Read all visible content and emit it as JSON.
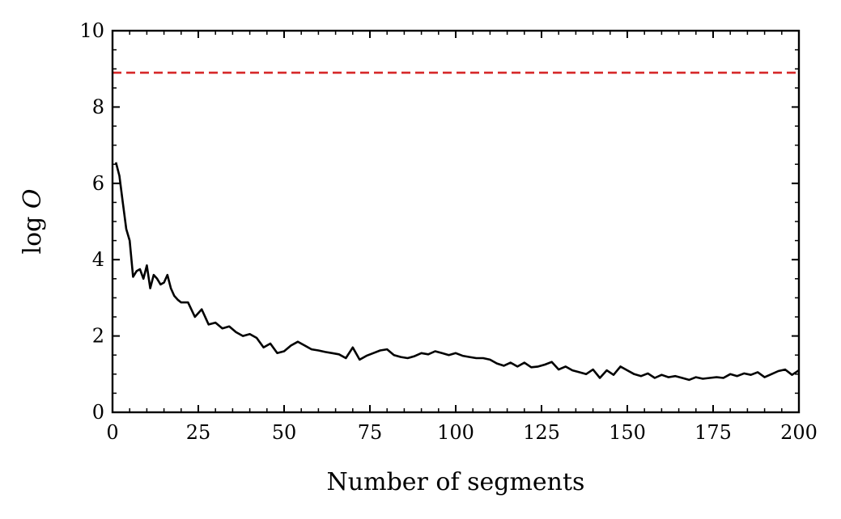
{
  "chart_data": {
    "type": "line",
    "xlabel": "Number of segments",
    "ylabel": "log O",
    "xlim": [
      0,
      200
    ],
    "ylim": [
      0,
      10
    ],
    "xticks": [
      0,
      25,
      50,
      75,
      100,
      125,
      150,
      175,
      200
    ],
    "yticks": [
      0,
      2,
      4,
      6,
      8,
      10
    ],
    "grid": false,
    "reference_line": {
      "y": 8.9,
      "style": "dashed",
      "color": "#d62728"
    },
    "series": [
      {
        "color": "#000000",
        "x": [
          1,
          2,
          3,
          4,
          5,
          6,
          7,
          8,
          9,
          10,
          11,
          12,
          13,
          14,
          15,
          16,
          17,
          18,
          19,
          20,
          22,
          24,
          26,
          28,
          30,
          32,
          34,
          36,
          38,
          40,
          42,
          44,
          46,
          48,
          50,
          52,
          54,
          56,
          58,
          60,
          62,
          64,
          66,
          68,
          70,
          72,
          74,
          76,
          78,
          80,
          82,
          84,
          86,
          88,
          90,
          92,
          94,
          96,
          98,
          100,
          102,
          104,
          106,
          108,
          110,
          112,
          114,
          116,
          118,
          120,
          122,
          124,
          126,
          128,
          130,
          132,
          134,
          136,
          138,
          140,
          142,
          144,
          146,
          148,
          150,
          152,
          154,
          156,
          158,
          160,
          162,
          164,
          166,
          168,
          170,
          172,
          174,
          176,
          178,
          180,
          182,
          184,
          186,
          188,
          190,
          192,
          194,
          196,
          198,
          200
        ],
        "y": [
          6.55,
          6.2,
          5.5,
          4.8,
          4.5,
          3.55,
          3.7,
          3.75,
          3.5,
          3.85,
          3.25,
          3.6,
          3.5,
          3.35,
          3.4,
          3.6,
          3.25,
          3.05,
          2.95,
          2.88,
          2.88,
          2.5,
          2.7,
          2.3,
          2.35,
          2.2,
          2.25,
          2.1,
          2.0,
          2.05,
          1.95,
          1.7,
          1.8,
          1.55,
          1.6,
          1.75,
          1.85,
          1.75,
          1.65,
          1.62,
          1.58,
          1.55,
          1.52,
          1.42,
          1.7,
          1.38,
          1.48,
          1.55,
          1.62,
          1.65,
          1.5,
          1.45,
          1.42,
          1.47,
          1.55,
          1.52,
          1.6,
          1.55,
          1.5,
          1.55,
          1.48,
          1.45,
          1.42,
          1.42,
          1.38,
          1.28,
          1.22,
          1.3,
          1.2,
          1.3,
          1.18,
          1.2,
          1.25,
          1.32,
          1.12,
          1.2,
          1.1,
          1.05,
          1.0,
          1.12,
          0.9,
          1.1,
          0.98,
          1.2,
          1.1,
          1.0,
          0.95,
          1.02,
          0.9,
          0.98,
          0.92,
          0.95,
          0.9,
          0.85,
          0.92,
          0.88,
          0.9,
          0.92,
          0.9,
          1.0,
          0.95,
          1.02,
          0.98,
          1.05,
          0.92,
          1.0,
          1.08,
          1.12,
          0.98,
          1.1
        ]
      }
    ]
  }
}
